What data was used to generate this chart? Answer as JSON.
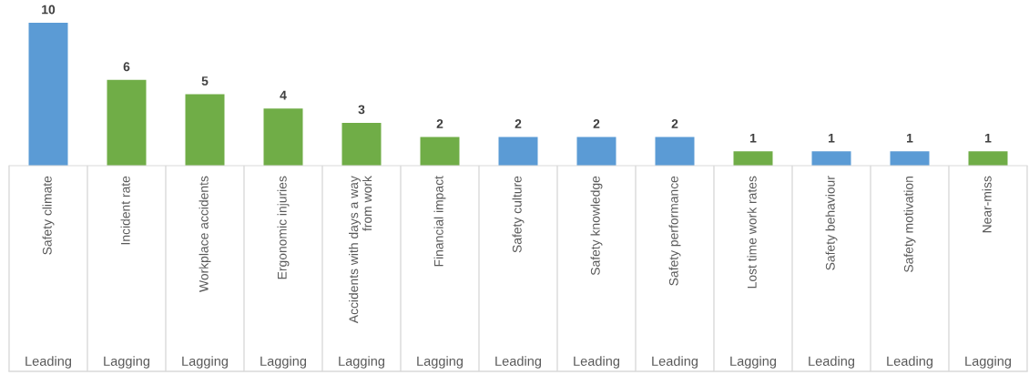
{
  "chart_data": {
    "type": "bar",
    "categories": [
      "Safety climate",
      "Incident rate",
      "Workplace accidents",
      "Ergonomic injuries",
      "Accidents with days a way from work",
      "Financial impact",
      "Safety culture",
      "Safety knowledge",
      "Safety performance",
      "Lost time work rates",
      "Safety behaviour",
      "Safety motivation",
      "Near-miss"
    ],
    "values": [
      10,
      6,
      5,
      4,
      3,
      2,
      2,
      2,
      2,
      1,
      1,
      1,
      1
    ],
    "colors": [
      "#5b9bd5",
      "#70ad47",
      "#70ad47",
      "#70ad47",
      "#70ad47",
      "#70ad47",
      "#5b9bd5",
      "#5b9bd5",
      "#5b9bd5",
      "#70ad47",
      "#5b9bd5",
      "#5b9bd5",
      "#70ad47"
    ],
    "data_labels": true,
    "annotations": [
      "Leading",
      "Lagging",
      "Lagging",
      "Lagging",
      "Lagging",
      "Lagging",
      "Leading",
      "Leading",
      "Leading",
      "Lagging",
      "Leading",
      "Leading",
      "Lagging"
    ]
  }
}
